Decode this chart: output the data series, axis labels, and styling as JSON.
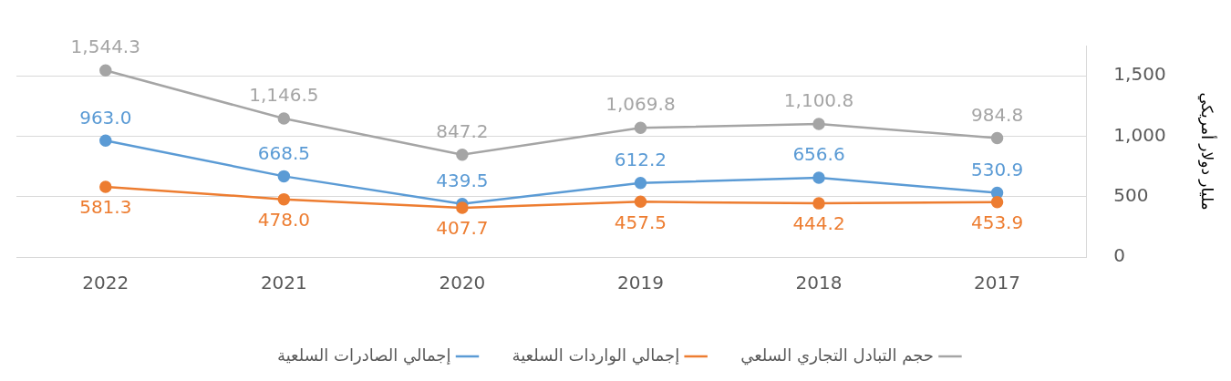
{
  "chart_data": {
    "type": "line",
    "ylabel": "مليار دولار أمريكي",
    "categories": [
      "2022",
      "2021",
      "2020",
      "2019",
      "2018",
      "2017"
    ],
    "series": [
      {
        "name": "حجم التبادل التجاري السلعي",
        "color": "#a5a5a5",
        "values": [
          1544.3,
          1146.5,
          847.2,
          1069.8,
          1100.8,
          984.8
        ],
        "value_labels": [
          "1,544.3",
          "1,146.5",
          "847.2",
          "1,069.8",
          "1,100.8",
          "984.8"
        ]
      },
      {
        "name": "إجمالي الواردات السلعية",
        "color": "#ed7d31",
        "values": [
          581.3,
          478.0,
          407.7,
          457.5,
          444.2,
          453.9
        ],
        "value_labels": [
          "581.3",
          "478.0",
          "407.7",
          "457.5",
          "444.2",
          "453.9"
        ]
      },
      {
        "name": "إجمالي الصادرات السلعية",
        "color": "#5b9bd5",
        "values": [
          963.0,
          668.5,
          439.5,
          612.2,
          656.6,
          530.9
        ],
        "value_labels": [
          "963.0",
          "668.5",
          "439.5",
          "612.2",
          "656.6",
          "530.9"
        ]
      }
    ],
    "ylim": [
      0,
      1750
    ],
    "yticks": [
      0,
      500,
      {
        "value": 1000,
        "label": "1,000"
      },
      {
        "value": 1500,
        "label": "1,500"
      }
    ],
    "grid": "y",
    "legend": "bottom",
    "marker": "circle",
    "line_style": "solid"
  }
}
